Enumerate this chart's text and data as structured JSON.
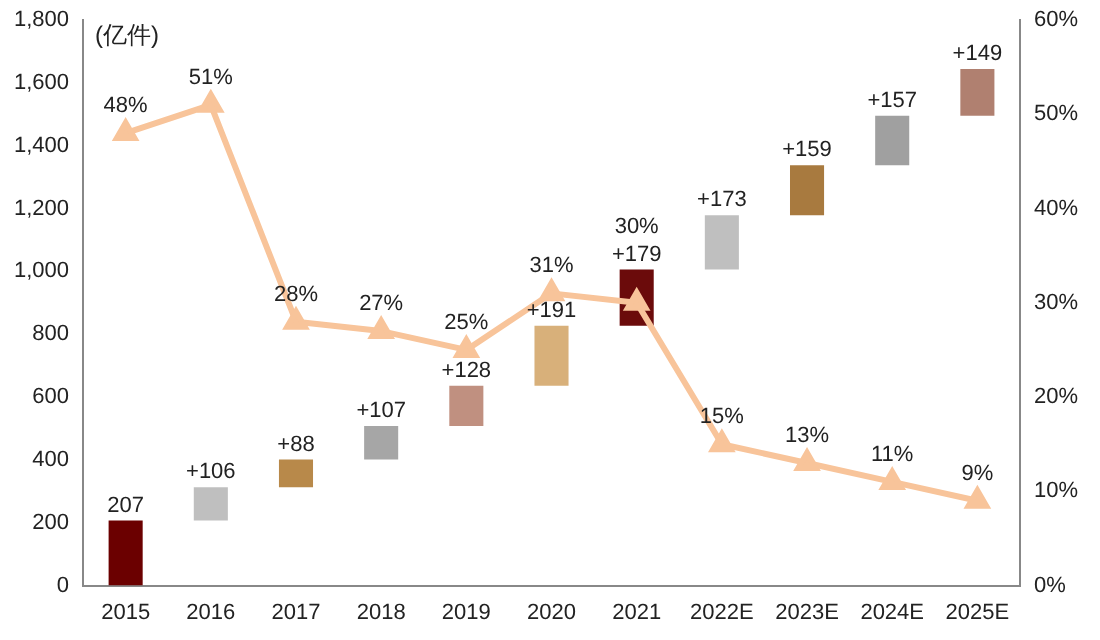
{
  "chart_data": {
    "type": "bar",
    "ylabel": "(亿件)",
    "categories": [
      "2015",
      "2016",
      "2017",
      "2018",
      "2019",
      "2020",
      "2021",
      "2022E",
      "2023E",
      "2024E",
      "2025E"
    ],
    "series": [
      {
        "values": [
          207,
          106,
          88,
          107,
          128,
          191,
          179,
          173,
          159,
          157,
          149
        ],
        "base": [
          0,
          207,
          313,
          401,
          508,
          636,
          827,
          1006,
          1179,
          1338,
          1495
        ],
        "colors": [
          "#6b0000",
          "#bfbfbf",
          "#b8894a",
          "#a6a6a6",
          "#c09080",
          "#d8b07a",
          "#6b0b0b",
          "#bfbfbf",
          "#a87a3f",
          "#a0a0a0",
          "#b08070"
        ],
        "value_labels": [
          "207",
          "+106",
          "+88",
          "+107",
          "+128",
          "+191",
          "+179",
          "+173",
          "+159",
          "+157",
          "+149"
        ]
      },
      {
        "type": "line",
        "axis": "y2",
        "color": "#f8c49a",
        "marker": "triangle",
        "values": [
          48,
          51,
          28,
          27,
          25,
          31,
          30,
          15,
          13,
          11,
          9
        ],
        "value_labels": [
          "48%",
          "51%",
          "28%",
          "27%",
          "25%",
          "31%",
          "30%",
          "15%",
          "13%",
          "11%",
          "9%"
        ]
      }
    ],
    "ylim": [
      0,
      1800
    ],
    "yticks": [
      0,
      200,
      400,
      600,
      800,
      {
        "value": 1000,
        "label": "1,000"
      },
      {
        "value": 1200,
        "label": "1,200"
      },
      {
        "value": 1400,
        "label": "1,400"
      },
      {
        "value": 1600,
        "label": "1,600"
      },
      {
        "value": 1800,
        "label": "1,800"
      }
    ],
    "y2lim": [
      0,
      60
    ],
    "y2ticks": [
      {
        "value": 0,
        "label": "0%"
      },
      {
        "value": 10,
        "label": "10%"
      },
      {
        "value": 20,
        "label": "20%"
      },
      {
        "value": 30,
        "label": "30%"
      },
      {
        "value": 40,
        "label": "40%"
      },
      {
        "value": 50,
        "label": "50%"
      },
      {
        "value": 60,
        "label": "60%"
      }
    ],
    "grid": false,
    "legend": false
  }
}
